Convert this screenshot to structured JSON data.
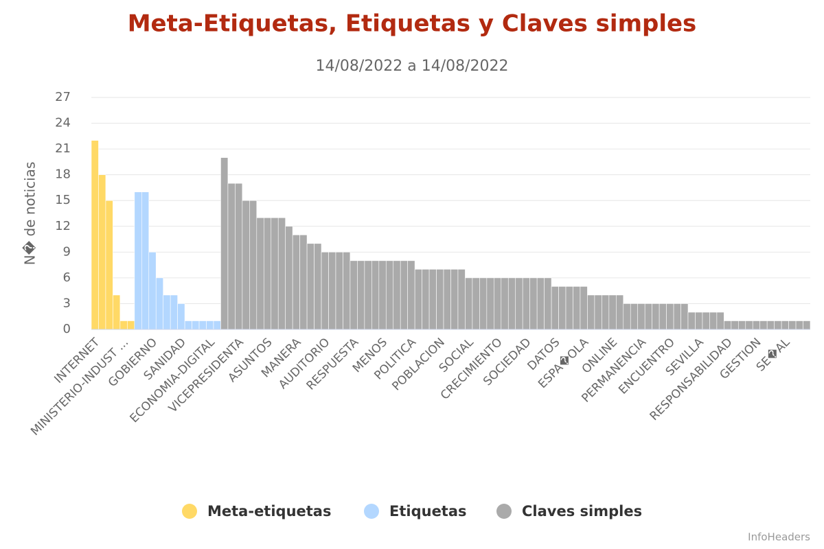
{
  "chart_data": {
    "type": "bar",
    "title": "Meta-Etiquetas, Etiquetas y Claves simples",
    "subtitle": "14/08/2022 a 14/08/2022",
    "y_label": "N� de noticias",
    "credits": "InfoHeaders",
    "ylim": [
      0,
      27
    ],
    "yticks": [
      0,
      3,
      6,
      9,
      12,
      15,
      18,
      21,
      24,
      27
    ],
    "grid": true,
    "legend": "bottom",
    "categories": [
      "INTERNET",
      null,
      null,
      null,
      "MINISTERIO-INDUST ...",
      null,
      null,
      null,
      "GOBIERNO",
      null,
      null,
      null,
      "SANIDAD",
      null,
      null,
      null,
      "ECONOMIA-DIGITAL",
      null,
      null,
      null,
      "VICEPRESIDENTA",
      null,
      null,
      null,
      "ASUNTOS",
      null,
      null,
      null,
      "MANERA",
      null,
      null,
      null,
      "AUDITORIO",
      null,
      null,
      null,
      "RESPUESTA",
      null,
      null,
      null,
      "MENOS",
      null,
      null,
      null,
      "POLITICA",
      null,
      null,
      null,
      "POBLACION",
      null,
      null,
      null,
      "SOCIAL",
      null,
      null,
      null,
      "CRECIMIENTO",
      null,
      null,
      null,
      "SOCIEDAD",
      null,
      null,
      null,
      "DATOS",
      null,
      null,
      null,
      "ESPA�OLA",
      null,
      null,
      null,
      "ONLINE",
      null,
      null,
      null,
      "PERMANENCIA",
      null,
      null,
      null,
      "ENCUENTRO",
      null,
      null,
      null,
      "SEVILLA",
      null,
      null,
      null,
      "RESPONSABILIDAD",
      null,
      null,
      null,
      "GESTION",
      null,
      null,
      null,
      "SE�AL",
      null,
      null,
      null
    ],
    "series": [
      {
        "name": "Meta-etiquetas",
        "color": "#ffd966",
        "values": [
          22,
          18,
          15,
          4,
          1,
          1,
          null,
          null,
          null,
          null,
          null,
          null,
          null,
          null,
          null,
          null,
          null,
          null,
          null,
          null,
          null,
          null,
          null,
          null,
          null,
          null,
          null,
          null,
          null,
          null,
          null,
          null,
          null,
          null,
          null,
          null,
          null,
          null,
          null,
          null,
          null,
          null,
          null,
          null,
          null,
          null,
          null,
          null,
          null,
          null,
          null,
          null,
          null,
          null,
          null,
          null,
          null,
          null,
          null,
          null,
          null,
          null,
          null,
          null,
          null,
          null,
          null,
          null,
          null,
          null,
          null,
          null,
          null,
          null,
          null,
          null,
          null,
          null,
          null,
          null,
          null,
          null,
          null,
          null,
          null,
          null,
          null,
          null,
          null,
          null,
          null,
          null,
          null,
          null,
          null,
          null,
          null,
          null,
          null,
          null
        ]
      },
      {
        "name": "Etiquetas",
        "color": "#b3d7ff",
        "values": [
          null,
          null,
          null,
          null,
          null,
          null,
          16,
          16,
          9,
          6,
          4,
          4,
          3,
          1,
          1,
          1,
          1,
          1,
          null,
          null,
          null,
          null,
          null,
          null,
          null,
          null,
          null,
          null,
          null,
          null,
          null,
          null,
          null,
          null,
          null,
          null,
          null,
          null,
          null,
          null,
          null,
          null,
          null,
          null,
          null,
          null,
          null,
          null,
          null,
          null,
          null,
          null,
          null,
          null,
          null,
          null,
          null,
          null,
          null,
          null,
          null,
          null,
          null,
          null,
          null,
          null,
          null,
          null,
          null,
          null,
          null,
          null,
          null,
          null,
          null,
          null,
          null,
          null,
          null,
          null,
          null,
          null,
          null,
          null,
          null,
          null,
          null,
          null,
          null,
          null,
          null,
          null,
          null,
          null,
          null,
          null,
          null,
          null,
          null,
          null
        ]
      },
      {
        "name": "Claves simples",
        "color": "#aaaaaa",
        "values": [
          null,
          null,
          null,
          null,
          null,
          null,
          null,
          null,
          null,
          null,
          null,
          null,
          null,
          null,
          null,
          null,
          null,
          null,
          20,
          17,
          17,
          15,
          15,
          13,
          13,
          13,
          13,
          12,
          11,
          11,
          10,
          10,
          9,
          9,
          9,
          9,
          8,
          8,
          8,
          8,
          8,
          8,
          8,
          8,
          8,
          7,
          7,
          7,
          7,
          7,
          7,
          7,
          6,
          6,
          6,
          6,
          6,
          6,
          6,
          6,
          6,
          6,
          6,
          6,
          5,
          5,
          5,
          5,
          5,
          4,
          4,
          4,
          4,
          4,
          3,
          3,
          3,
          3,
          3,
          3,
          3,
          3,
          3,
          2,
          2,
          2,
          2,
          2,
          1,
          1,
          1,
          1,
          1,
          1,
          1,
          1,
          1,
          1,
          1,
          1
        ]
      }
    ]
  }
}
